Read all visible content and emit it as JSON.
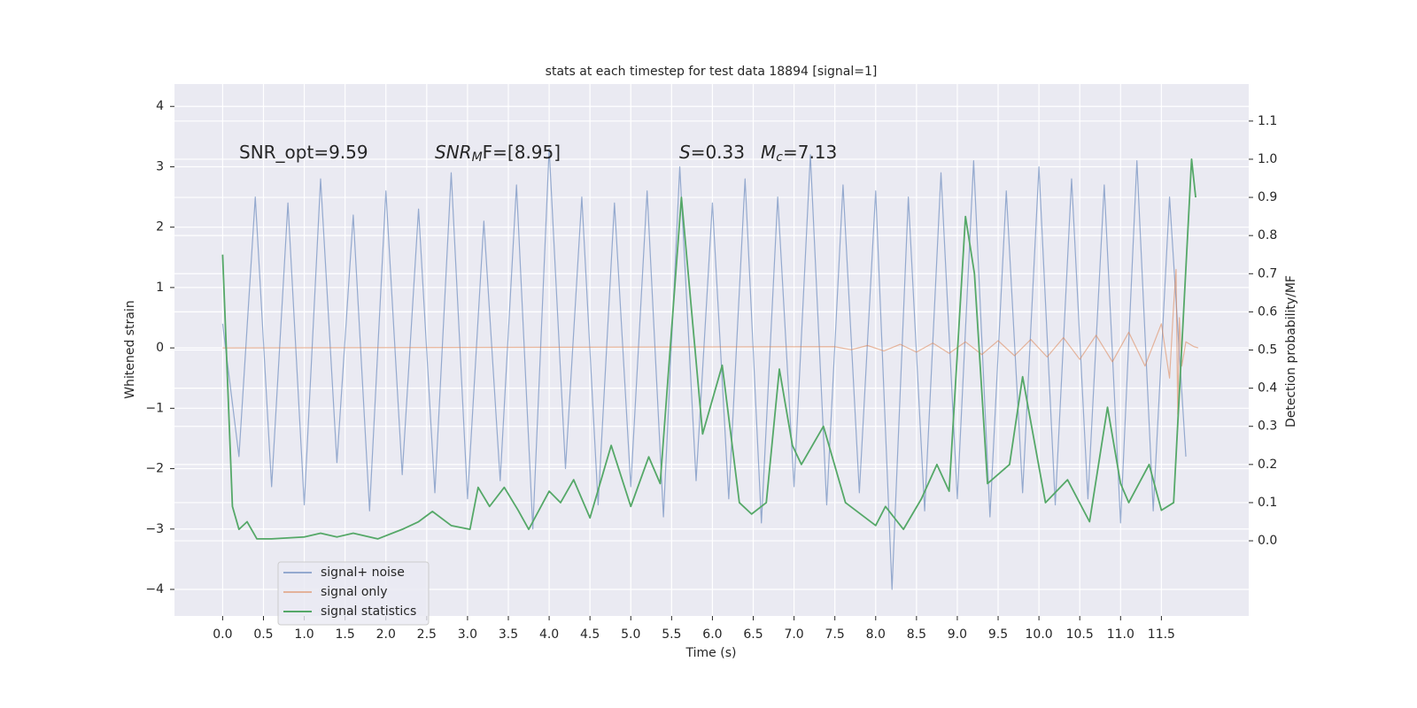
{
  "chart_data": {
    "type": "line",
    "title": "stats at each timestep for test data 18894 [signal=1]",
    "x_label": "Time (s)",
    "y_label": "Whitened strain",
    "y2_label": "Detection probability/MF",
    "annotations": [
      {
        "base": "SNR_opt=9.59"
      },
      {
        "base": "SNR",
        "sub": "M",
        "tail": "F=[8.95]"
      },
      {
        "base": "S",
        "tail": "=0.33"
      },
      {
        "base": "M",
        "sub": "c",
        "tail": "=7.13"
      }
    ],
    "xlim": [
      -0.59,
      12.57
    ],
    "ylim": [
      -4.44,
      4.37
    ],
    "y2lim": [
      -0.197,
      1.197
    ],
    "xticks": [
      {
        "value": 0,
        "label": "0.0"
      },
      {
        "value": 0.5,
        "label": "0.5"
      },
      {
        "value": 1,
        "label": "1.0"
      },
      {
        "value": 1.5,
        "label": "1.5"
      },
      {
        "value": 2,
        "label": "2.0"
      },
      {
        "value": 2.5,
        "label": "2.5"
      },
      {
        "value": 3,
        "label": "3.0"
      },
      {
        "value": 3.5,
        "label": "3.5"
      },
      {
        "value": 4,
        "label": "4.0"
      },
      {
        "value": 4.5,
        "label": "4.5"
      },
      {
        "value": 5,
        "label": "5.0"
      },
      {
        "value": 5.5,
        "label": "5.5"
      },
      {
        "value": 6,
        "label": "6.0"
      },
      {
        "value": 6.5,
        "label": "6.5"
      },
      {
        "value": 7,
        "label": "7.0"
      },
      {
        "value": 7.5,
        "label": "7.5"
      },
      {
        "value": 8,
        "label": "8.0"
      },
      {
        "value": 8.5,
        "label": "8.5"
      },
      {
        "value": 9,
        "label": "9.0"
      },
      {
        "value": 9.5,
        "label": "9.5"
      },
      {
        "value": 10,
        "label": "10.0"
      },
      {
        "value": 10.5,
        "label": "10.5"
      },
      {
        "value": 11,
        "label": "11.0"
      },
      {
        "value": 11.5,
        "label": "11.5"
      }
    ],
    "yticks": [
      {
        "value": -4,
        "label": "−4"
      },
      {
        "value": -3,
        "label": "−3"
      },
      {
        "value": -2,
        "label": "−2"
      },
      {
        "value": -1,
        "label": "−1"
      },
      0,
      1,
      2,
      3,
      4
    ],
    "y2ticks": [
      {
        "value": 0,
        "label": "0.0"
      },
      0.1,
      0.2,
      0.3,
      0.4,
      0.5,
      0.6,
      0.7,
      0.8,
      0.9,
      {
        "value": 1,
        "label": "1.0"
      },
      1.1
    ],
    "grid": true,
    "legend": "lower left",
    "series": [
      {
        "name": "signal+ noise",
        "color": "#4c72b0",
        "x": [
          0,
          0.2,
          0.4,
          0.6,
          0.8,
          1,
          1.2,
          1.4,
          1.6,
          1.8,
          2,
          2.2,
          2.4,
          2.6,
          2.8,
          3,
          3.2,
          3.4,
          3.6,
          3.8,
          4,
          4.2,
          4.4,
          4.6,
          4.8,
          5,
          5.2,
          5.4,
          5.6,
          5.8,
          6,
          6.2,
          6.4,
          6.6,
          6.8,
          7,
          7.2,
          7.4,
          7.6,
          7.8,
          8,
          8.2,
          8.4,
          8.6,
          8.8,
          9,
          9.2,
          9.4,
          9.6,
          9.8,
          10,
          10.2,
          10.4,
          10.6,
          10.8,
          11,
          11.2,
          11.4,
          11.6,
          11.8
        ],
        "values": [
          0.4,
          -1.8,
          2.5,
          -2.3,
          2.4,
          -2.6,
          2.8,
          -1.9,
          2.2,
          -2.7,
          2.6,
          -2.1,
          2.3,
          -2.4,
          2.9,
          -2.5,
          2.1,
          -2.2,
          2.7,
          -3.0,
          3.3,
          -2.0,
          2.5,
          -2.6,
          2.4,
          -2.3,
          2.6,
          -2.8,
          3.0,
          -2.2,
          2.4,
          -2.5,
          2.8,
          -2.9,
          2.5,
          -2.3,
          3.2,
          -2.6,
          2.7,
          -2.4,
          2.6,
          -4.0,
          2.5,
          -2.7,
          2.9,
          -2.5,
          3.1,
          -2.8,
          2.6,
          -2.4,
          3.0,
          -2.6,
          2.8,
          -2.5,
          2.7,
          -2.9,
          3.1,
          -2.7,
          2.5,
          -1.8
        ]
      },
      {
        "name": "signal only",
        "color": "#dd8452",
        "x": [
          0,
          7.5,
          7.7,
          7.9,
          8.1,
          8.3,
          8.5,
          8.7,
          8.9,
          9.1,
          9.3,
          9.5,
          9.7,
          9.9,
          10.1,
          10.3,
          10.5,
          10.7,
          10.9,
          11.1,
          11.3,
          11.5,
          11.6,
          11.65,
          11.68,
          11.7,
          11.72,
          11.75,
          11.8,
          11.9,
          11.95
        ],
        "values": [
          0,
          0.02,
          -0.03,
          0.04,
          -0.05,
          0.06,
          -0.07,
          0.08,
          -0.09,
          0.1,
          -0.11,
          0.12,
          -0.13,
          0.14,
          -0.15,
          0.17,
          -0.19,
          0.21,
          -0.23,
          0.26,
          -0.3,
          0.4,
          -0.5,
          0.7,
          1.3,
          -1.1,
          0.5,
          -0.3,
          0.1,
          0.02,
          0
        ]
      },
      {
        "name": "signal statistics",
        "color": "#55a868",
        "axis": "y2",
        "x": [
          0,
          0.12,
          0.2,
          0.3,
          0.42,
          0.6,
          1.0,
          1.2,
          1.4,
          1.6,
          1.9,
          2.2,
          2.4,
          2.57,
          2.8,
          3.03,
          3.13,
          3.27,
          3.45,
          3.62,
          3.75,
          4.0,
          4.14,
          4.3,
          4.5,
          4.76,
          5.0,
          5.22,
          5.36,
          5.62,
          5.88,
          6.12,
          6.33,
          6.48,
          6.66,
          6.82,
          6.98,
          7.09,
          7.36,
          7.63,
          8.0,
          8.12,
          8.34,
          8.56,
          8.75,
          8.9,
          9.1,
          9.21,
          9.37,
          9.64,
          9.8,
          9.91,
          10.08,
          10.35,
          10.62,
          10.84,
          11.0,
          11.1,
          11.35,
          11.5,
          11.65,
          11.87,
          11.92
        ],
        "values": [
          0.75,
          0.09,
          0.03,
          0.05,
          0.005,
          0.005,
          0.01,
          0.02,
          0.01,
          0.02,
          0.005,
          0.03,
          0.05,
          0.077,
          0.04,
          0.03,
          0.14,
          0.09,
          0.14,
          0.08,
          0.03,
          0.13,
          0.1,
          0.16,
          0.06,
          0.25,
          0.09,
          0.22,
          0.15,
          0.9,
          0.28,
          0.46,
          0.1,
          0.07,
          0.1,
          0.45,
          0.25,
          0.2,
          0.3,
          0.1,
          0.04,
          0.09,
          0.03,
          0.11,
          0.2,
          0.13,
          0.85,
          0.7,
          0.15,
          0.2,
          0.43,
          0.3,
          0.1,
          0.16,
          0.05,
          0.35,
          0.15,
          0.1,
          0.2,
          0.08,
          0.1,
          1.0,
          0.9
        ]
      }
    ]
  }
}
